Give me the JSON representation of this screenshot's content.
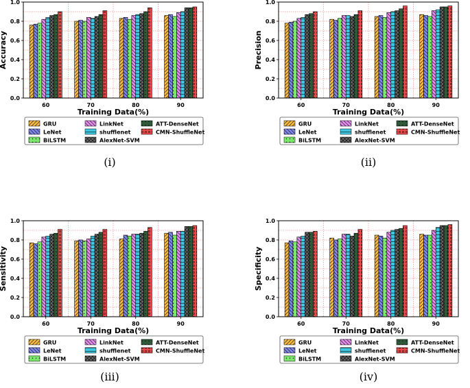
{
  "chart_data": [
    {
      "type": "bar",
      "panel": "(i)",
      "ylabel": "Accuracy",
      "xlabel": "Training Data(%)",
      "ylim": [
        0,
        1.0
      ],
      "yticks": [
        "0.0",
        "0.2",
        "0.4",
        "0.6",
        "0.8",
        "1.0"
      ],
      "categories": [
        "60",
        "70",
        "80",
        "90"
      ],
      "series": [
        {
          "name": "GRU",
          "values": [
            0.76,
            0.8,
            0.83,
            0.86
          ]
        },
        {
          "name": "LeNet",
          "values": [
            0.77,
            0.81,
            0.84,
            0.87
          ]
        },
        {
          "name": "BiLSTM",
          "values": [
            0.78,
            0.8,
            0.82,
            0.85
          ]
        },
        {
          "name": "LinkNet",
          "values": [
            0.82,
            0.84,
            0.86,
            0.89
          ]
        },
        {
          "name": "shufflenet",
          "values": [
            0.84,
            0.83,
            0.87,
            0.9
          ]
        },
        {
          "name": "AlexNet-SVM",
          "values": [
            0.86,
            0.85,
            0.88,
            0.94
          ]
        },
        {
          "name": "ATT-DenseNet",
          "values": [
            0.87,
            0.87,
            0.9,
            0.94
          ]
        },
        {
          "name": "CMN-ShuffleNet",
          "values": [
            0.9,
            0.91,
            0.94,
            0.95
          ]
        }
      ]
    },
    {
      "type": "bar",
      "panel": "(ii)",
      "ylabel": "Precision",
      "xlabel": "Training Data(%)",
      "ylim": [
        0,
        1.0
      ],
      "yticks": [
        "0.0",
        "0.2",
        "0.4",
        "0.6",
        "0.8",
        "1.0"
      ],
      "categories": [
        "60",
        "70",
        "80",
        "90"
      ],
      "series": [
        {
          "name": "GRU",
          "values": [
            0.78,
            0.82,
            0.85,
            0.87
          ]
        },
        {
          "name": "LeNet",
          "values": [
            0.79,
            0.81,
            0.86,
            0.86
          ]
        },
        {
          "name": "BiLSTM",
          "values": [
            0.8,
            0.83,
            0.84,
            0.85
          ]
        },
        {
          "name": "LinkNet",
          "values": [
            0.83,
            0.86,
            0.89,
            0.91
          ]
        },
        {
          "name": "shufflenet",
          "values": [
            0.84,
            0.86,
            0.9,
            0.92
          ]
        },
        {
          "name": "AlexNet-SVM",
          "values": [
            0.87,
            0.85,
            0.91,
            0.95
          ]
        },
        {
          "name": "ATT-DenseNet",
          "values": [
            0.88,
            0.87,
            0.93,
            0.95
          ]
        },
        {
          "name": "CMN-ShuffleNet",
          "values": [
            0.9,
            0.91,
            0.96,
            0.96
          ]
        }
      ]
    },
    {
      "type": "bar",
      "panel": "(iii)",
      "ylabel": "Sensitivity",
      "xlabel": "Training Data(%)",
      "ylim": [
        0,
        1.0
      ],
      "yticks": [
        "0.0",
        "0.2",
        "0.4",
        "0.6",
        "0.8",
        "1.0"
      ],
      "categories": [
        "60",
        "70",
        "80",
        "90"
      ],
      "series": [
        {
          "name": "GRU",
          "values": [
            0.77,
            0.79,
            0.81,
            0.87
          ]
        },
        {
          "name": "LeNet",
          "values": [
            0.76,
            0.8,
            0.85,
            0.88
          ]
        },
        {
          "name": "BiLSTM",
          "values": [
            0.78,
            0.79,
            0.84,
            0.85
          ]
        },
        {
          "name": "LinkNet",
          "values": [
            0.83,
            0.81,
            0.86,
            0.89
          ]
        },
        {
          "name": "shufflenet",
          "values": [
            0.84,
            0.84,
            0.86,
            0.89
          ]
        },
        {
          "name": "AlexNet-SVM",
          "values": [
            0.86,
            0.86,
            0.87,
            0.94
          ]
        },
        {
          "name": "ATT-DenseNet",
          "values": [
            0.87,
            0.88,
            0.89,
            0.94
          ]
        },
        {
          "name": "CMN-ShuffleNet",
          "values": [
            0.91,
            0.91,
            0.93,
            0.95
          ]
        }
      ]
    },
    {
      "type": "bar",
      "panel": "(iv)",
      "ylabel": "Specificity",
      "xlabel": "Training Data(%)",
      "ylim": [
        0,
        1.0
      ],
      "yticks": [
        "0.0",
        "0.2",
        "0.4",
        "0.6",
        "0.8",
        "1.0"
      ],
      "categories": [
        "60",
        "70",
        "80",
        "90"
      ],
      "series": [
        {
          "name": "GRU",
          "values": [
            0.77,
            0.82,
            0.85,
            0.86
          ]
        },
        {
          "name": "LeNet",
          "values": [
            0.79,
            0.8,
            0.84,
            0.85
          ]
        },
        {
          "name": "BiLSTM",
          "values": [
            0.78,
            0.81,
            0.82,
            0.85
          ]
        },
        {
          "name": "LinkNet",
          "values": [
            0.83,
            0.86,
            0.88,
            0.9
          ]
        },
        {
          "name": "shufflenet",
          "values": [
            0.84,
            0.86,
            0.9,
            0.93
          ]
        },
        {
          "name": "AlexNet-SVM",
          "values": [
            0.88,
            0.84,
            0.91,
            0.95
          ]
        },
        {
          "name": "ATT-DenseNet",
          "values": [
            0.88,
            0.87,
            0.92,
            0.95
          ]
        },
        {
          "name": "CMN-ShuffleNet",
          "values": [
            0.89,
            0.91,
            0.95,
            0.96
          ]
        }
      ]
    }
  ],
  "legend": [
    {
      "name": "GRU",
      "color": "#f5b942",
      "pattern": "slash"
    },
    {
      "name": "LinkNet",
      "color": "#e08be8",
      "pattern": "backslash"
    },
    {
      "name": "ATT-DenseNet",
      "color": "#2f5a3a",
      "pattern": "dash"
    },
    {
      "name": "LeNet",
      "color": "#7f86e8",
      "pattern": "backslash"
    },
    {
      "name": "shufflenet",
      "color": "#3fc7e0",
      "pattern": "hline"
    },
    {
      "name": "CMN-ShuffleNet",
      "color": "#e84a4a",
      "pattern": "circle"
    },
    {
      "name": "BiLSTM",
      "color": "#7be86b",
      "pattern": "dot"
    },
    {
      "name": "AlexNet-SVM",
      "color": "#666666",
      "pattern": "cross"
    }
  ],
  "captions": [
    "(i)",
    "(ii)",
    "(iii)",
    "(iv)"
  ]
}
